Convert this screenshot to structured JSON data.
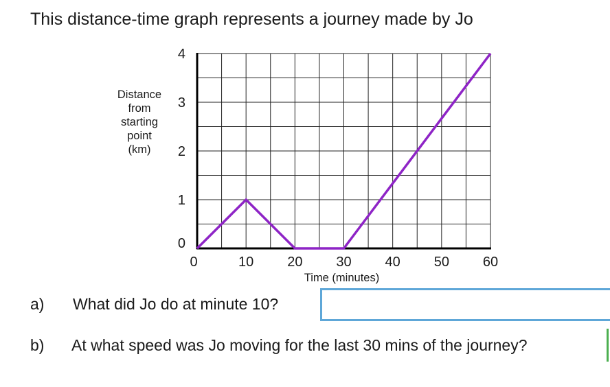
{
  "title": "This distance-time graph represents a journey made by Jo",
  "chart_data": {
    "type": "line",
    "xlabel": "Time (minutes)",
    "ylabel_lines": [
      "Distance",
      "from",
      "starting",
      "point",
      "(km)"
    ],
    "xlim": [
      0,
      60
    ],
    "ylim": [
      0,
      4
    ],
    "x_ticks": [
      "0",
      "10",
      "20",
      "30",
      "40",
      "50",
      "60"
    ],
    "y_ticks": [
      "0",
      "1",
      "2",
      "3",
      "4"
    ],
    "grid": true,
    "series": [
      {
        "x": [
          0,
          10,
          20,
          30,
          60
        ],
        "y": [
          0,
          1,
          0,
          0,
          4
        ],
        "color": "#8e24c6"
      }
    ]
  },
  "questions": [
    {
      "letter": "a)",
      "text": "What did Jo do at minute 10?",
      "answer": ""
    },
    {
      "letter": "b)",
      "text": "At what speed was Jo moving for the last 30 mins of the journey?",
      "answer": ""
    }
  ],
  "colors": {
    "line": "#8e24c6",
    "answer_border_a": "#5ea7d8",
    "answer_border_b": "#4caf50"
  }
}
